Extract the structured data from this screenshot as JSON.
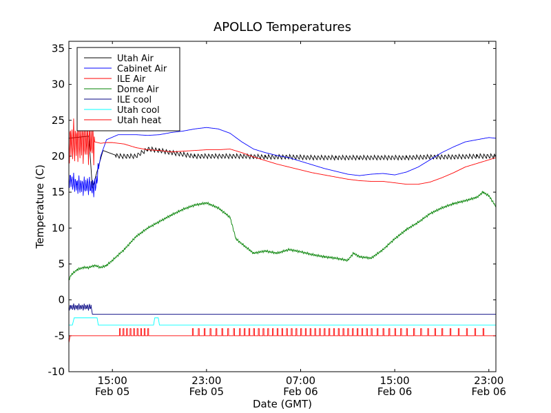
{
  "chart_data": {
    "type": "line",
    "title": "APOLLO Temperatures",
    "xlabel": "Date (GMT)",
    "ylabel": "Temperature (C)",
    "ylim": [
      -10,
      36
    ],
    "xlim_hours": [
      11.3,
      47.6
    ],
    "x_unit": "hours since 2011-02-05 00:00 GMT",
    "legend_position": "top-left",
    "grid": false,
    "x_ticks": [
      {
        "hours": 15,
        "line1": "15:00",
        "line2": "Feb 05"
      },
      {
        "hours": 23,
        "line1": "23:00",
        "line2": "Feb 05"
      },
      {
        "hours": 31,
        "line1": "07:00",
        "line2": "Feb 06"
      },
      {
        "hours": 39,
        "line1": "15:00",
        "line2": "Feb 06"
      },
      {
        "hours": 47,
        "line1": "23:00",
        "line2": "Feb 06"
      }
    ],
    "y_ticks": [
      -10,
      -5,
      0,
      5,
      10,
      15,
      20,
      25,
      30,
      35
    ],
    "series": [
      {
        "name": "Utah Air",
        "color": "#000000",
        "style": "sawtooth",
        "x": [
          11.3,
          13.0,
          13.3,
          13.8,
          14.2,
          15.5,
          17.0,
          18.0,
          19.0,
          20.0,
          22.0,
          24.0,
          26.0,
          28.0,
          30.0,
          32.0,
          34.0,
          36.0,
          38.0,
          40.0,
          42.0,
          44.0,
          46.0,
          47.6
        ],
        "values": [
          22.5,
          22.8,
          15.5,
          18.5,
          20.8,
          20.0,
          20.0,
          21.0,
          20.8,
          20.5,
          20.0,
          20.0,
          20.0,
          19.9,
          19.9,
          19.8,
          19.8,
          19.8,
          19.8,
          19.8,
          19.9,
          19.9,
          20.0,
          20.0
        ],
        "ripple": {
          "start": 15.3,
          "end": 47.6,
          "peak_to_peak": 0.7
        }
      },
      {
        "name": "Cabinet Air",
        "color": "#0000ff",
        "style": "line",
        "x": [
          11.3,
          11.5,
          12.0,
          12.5,
          13.0,
          13.3,
          13.6,
          14.0,
          14.5,
          15.5,
          17.0,
          18.0,
          19.0,
          20.0,
          21.0,
          22.0,
          23.0,
          24.0,
          25.0,
          26.0,
          27.0,
          28.0,
          29.0,
          30.0,
          31.0,
          32.0,
          33.0,
          34.0,
          35.0,
          36.0,
          37.0,
          38.0,
          39.0,
          40.0,
          41.0,
          42.0,
          43.0,
          44.0,
          45.0,
          46.0,
          47.0,
          47.6
        ],
        "values": [
          17.0,
          16.5,
          16.0,
          15.8,
          16.0,
          15.5,
          16.0,
          20.0,
          22.3,
          23.0,
          23.0,
          22.9,
          23.0,
          23.3,
          23.5,
          23.8,
          24.0,
          23.8,
          23.2,
          22.0,
          21.0,
          20.5,
          20.1,
          19.8,
          19.3,
          18.8,
          18.3,
          17.9,
          17.5,
          17.3,
          17.5,
          17.6,
          17.4,
          17.8,
          18.5,
          19.5,
          20.5,
          21.3,
          22.0,
          22.3,
          22.6,
          22.5
        ],
        "ripple": {
          "start": 11.3,
          "end": 13.8,
          "peak_to_peak": 2.8
        }
      },
      {
        "name": "ILE Air",
        "color": "#ff0000",
        "style": "line",
        "x": [
          11.3,
          13.5,
          14.0,
          14.5,
          15.0,
          16.0,
          17.0,
          18.0,
          19.0,
          20.0,
          21.0,
          22.0,
          23.0,
          24.0,
          25.0,
          26.0,
          27.0,
          28.0,
          29.0,
          30.0,
          31.0,
          32.0,
          33.0,
          34.0,
          35.0,
          36.0,
          37.0,
          38.0,
          39.0,
          40.0,
          41.0,
          42.0,
          43.0,
          44.0,
          45.0,
          46.0,
          47.0,
          47.6
        ],
        "values": [
          22.0,
          22.0,
          21.8,
          21.9,
          21.9,
          21.7,
          21.2,
          20.9,
          20.8,
          20.6,
          20.7,
          20.8,
          20.9,
          20.9,
          21.0,
          20.5,
          19.9,
          19.4,
          18.9,
          18.5,
          18.1,
          17.7,
          17.4,
          17.1,
          16.8,
          16.6,
          16.5,
          16.5,
          16.3,
          16.1,
          16.1,
          16.4,
          17.0,
          17.7,
          18.5,
          19.0,
          19.5,
          19.8
        ],
        "ripple": {
          "start": 11.3,
          "end": 13.5,
          "peak_to_peak": 6.5
        }
      },
      {
        "name": "Dome Air",
        "color": "#008000",
        "style": "line",
        "x": [
          11.3,
          11.5,
          12.0,
          12.5,
          13.0,
          13.5,
          14.0,
          14.5,
          15.0,
          16.0,
          17.0,
          18.0,
          19.0,
          20.0,
          21.0,
          22.0,
          23.0,
          24.0,
          25.0,
          25.5,
          26.0,
          27.0,
          28.0,
          29.0,
          30.0,
          31.0,
          32.0,
          33.0,
          34.0,
          35.0,
          35.5,
          36.0,
          37.0,
          38.0,
          39.0,
          40.0,
          41.0,
          42.0,
          43.0,
          44.0,
          45.0,
          46.0,
          46.5,
          47.0,
          47.6
        ],
        "values": [
          2.8,
          3.5,
          4.2,
          4.5,
          4.5,
          4.8,
          4.5,
          4.8,
          5.5,
          7.0,
          8.8,
          10.0,
          10.9,
          11.8,
          12.6,
          13.2,
          13.5,
          12.8,
          11.5,
          8.5,
          7.8,
          6.5,
          6.8,
          6.5,
          7.0,
          6.7,
          6.3,
          6.0,
          5.8,
          5.5,
          6.5,
          6.0,
          5.8,
          7.0,
          8.5,
          9.8,
          10.8,
          12.0,
          12.8,
          13.4,
          13.8,
          14.3,
          15.0,
          14.5,
          13.0
        ],
        "ripple": {
          "start": 11.3,
          "end": 47.6,
          "peak_to_peak": 0.35
        }
      },
      {
        "name": "ILE cool",
        "color": "#000080",
        "style": "line",
        "x": [
          11.3,
          13.2,
          13.3,
          47.6
        ],
        "values": [
          -1.0,
          -1.0,
          -2.0,
          -2.0
        ],
        "ripple": {
          "start": 11.3,
          "end": 13.2,
          "peak_to_peak": 1.0
        }
      },
      {
        "name": "Utah cool",
        "color": "#00ffff",
        "style": "line",
        "x": [
          11.3,
          11.6,
          11.75,
          13.7,
          13.8,
          18.5,
          18.6,
          18.9,
          19.0,
          47.6
        ],
        "values": [
          -3.5,
          -3.5,
          -2.5,
          -2.5,
          -3.5,
          -3.5,
          -2.5,
          -2.5,
          -3.5,
          -3.5
        ]
      },
      {
        "name": "Utah heat",
        "color": "#ff0000",
        "style": "pulses",
        "base": -5.0,
        "pulse_high": -4.0,
        "x": [
          11.3,
          11.4,
          11.5,
          47.6
        ],
        "values": [
          -6.0,
          -5.0,
          -5.0,
          -5.0
        ],
        "pulse_times": [
          15.6,
          15.9,
          16.2,
          16.5,
          16.8,
          17.1,
          17.4,
          17.7,
          18.0,
          21.8,
          22.3,
          22.8,
          23.3,
          23.8,
          24.3,
          24.8,
          25.3,
          25.8,
          26.2,
          26.6,
          27.0,
          27.4,
          27.8,
          28.2,
          28.6,
          29.0,
          29.4,
          29.8,
          30.2,
          30.6,
          31.0,
          31.4,
          31.8,
          32.2,
          32.6,
          33.0,
          33.4,
          33.8,
          34.2,
          34.6,
          35.0,
          35.4,
          35.8,
          36.2,
          36.6,
          37.0,
          37.5,
          38.0,
          38.5,
          39.0,
          39.5,
          40.0,
          40.6,
          41.2,
          41.8,
          42.4,
          43.0,
          43.7,
          44.4,
          45.1,
          45.8,
          46.5
        ]
      }
    ]
  }
}
